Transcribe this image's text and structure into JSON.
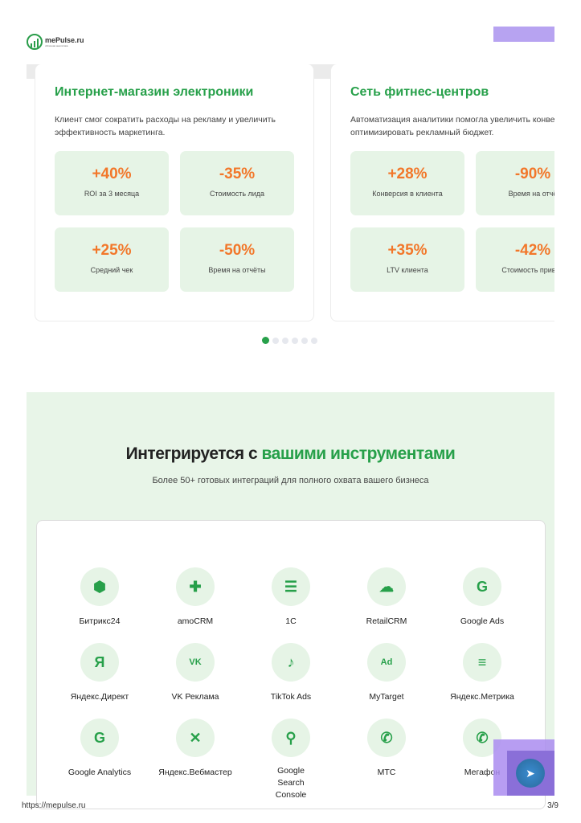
{
  "header": {
    "logo_text": "mePulse.ru",
    "logo_sub": "облачная аналитика"
  },
  "cases": [
    {
      "title": "Интернет-магазин электроники",
      "desc": [
        "Клиент смог сократить расходы на рекламу и увеличить",
        "эффективность маркетинга."
      ],
      "stats": [
        {
          "value": "+40%",
          "label": "ROI за 3 месяца"
        },
        {
          "value": "-35%",
          "label": "Стоимость лида"
        },
        {
          "value": "+25%",
          "label": "Средний чек"
        },
        {
          "value": "-50%",
          "label": "Время на отчёты"
        }
      ]
    },
    {
      "title": "Сеть фитнес-центров",
      "desc": [
        "Автоматизация аналитики помогла увеличить конвер",
        "оптимизировать рекламный бюджет."
      ],
      "stats": [
        {
          "value": "+28%",
          "label": "Конверсия в клиента"
        },
        {
          "value": "-90%",
          "label": "Время на отчё"
        },
        {
          "value": "+35%",
          "label": "LTV клиента"
        },
        {
          "value": "-42%",
          "label": "Стоимость привле"
        }
      ]
    }
  ],
  "carousel": {
    "active": 1,
    "count": 6
  },
  "integrations": {
    "title_plain": "Интегрируется с ",
    "title_accent": "вашими инструментами",
    "subtitle": "Более 50+ готовых интеграций для полного охвата вашего бизнеса",
    "items": [
      {
        "name": "Битрикс24",
        "icon": "cube-icon"
      },
      {
        "name": "amoCRM",
        "icon": "puzzle-icon"
      },
      {
        "name": "1С",
        "icon": "database-icon"
      },
      {
        "name": "RetailCRM",
        "icon": "cloud-icon"
      },
      {
        "name": "Google Ads",
        "icon": "google-icon"
      },
      {
        "name": "Яндекс.Директ",
        "icon": "yandex-icon"
      },
      {
        "name": "VK Реклама",
        "icon": "vk-icon"
      },
      {
        "name": "TikTok Ads",
        "icon": "tiktok-icon"
      },
      {
        "name": "MyTarget",
        "icon": "ad-icon"
      },
      {
        "name": "Яндекс.Метрика",
        "icon": "chart-icon"
      },
      {
        "name": "Google Analytics",
        "icon": "google-icon"
      },
      {
        "name": "Яндекс.Вебмастер",
        "icon": "tools-icon"
      },
      {
        "name": "Google Search Console",
        "icon": "search-icon"
      },
      {
        "name": "МТС",
        "icon": "phone-icon"
      },
      {
        "name": "Мегафон",
        "icon": "phone-icon"
      }
    ]
  },
  "footer": {
    "url": "https://mepulse.ru",
    "page": "3/9"
  },
  "colors": {
    "accent": "#27a04a",
    "stat": "#f2772a",
    "section_bg": "#e8f5e8"
  }
}
